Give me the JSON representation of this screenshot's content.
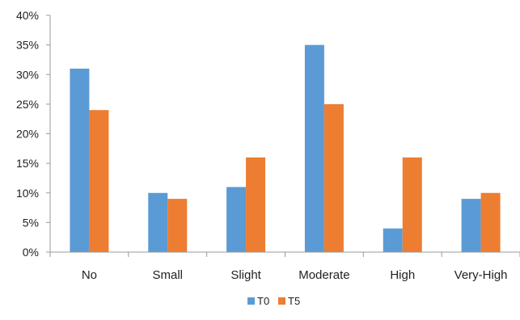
{
  "chart_data": {
    "type": "bar",
    "categories": [
      "No",
      "Small",
      "Slight",
      "Moderate",
      "High",
      "Very-High"
    ],
    "series": [
      {
        "name": "T0",
        "values": [
          31,
          10,
          11,
          35,
          4,
          9
        ],
        "color": "#5B9BD5"
      },
      {
        "name": "T5",
        "values": [
          24,
          9,
          16,
          25,
          16,
          10
        ],
        "color": "#ED7D31"
      }
    ],
    "y_ticks": [
      "0%",
      "5%",
      "10%",
      "15%",
      "20%",
      "25%",
      "30%",
      "35%",
      "40%"
    ],
    "ylim": [
      0,
      40
    ],
    "y_unit": "%",
    "grid": false,
    "legend_position": "bottom"
  }
}
